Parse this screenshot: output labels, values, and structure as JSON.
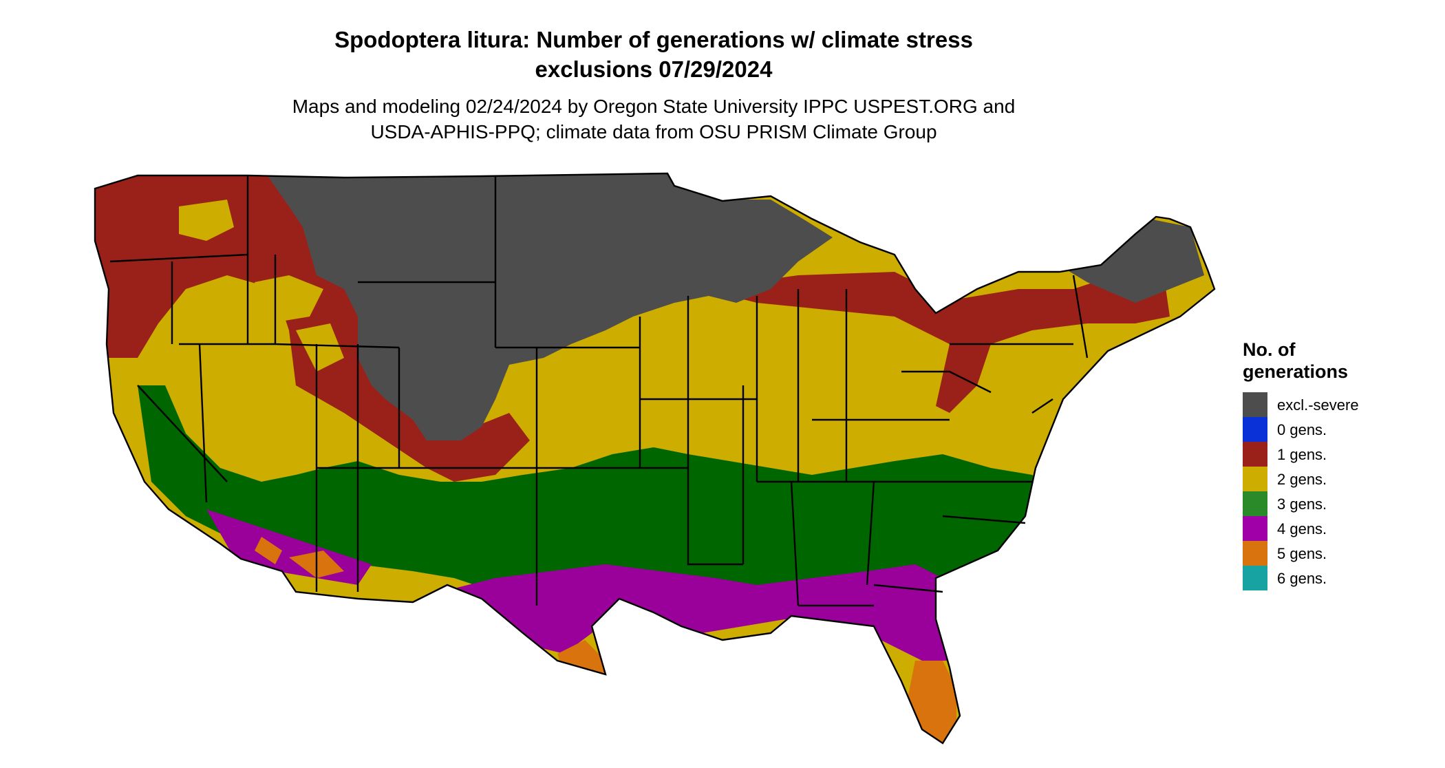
{
  "title": {
    "line1": "Spodoptera litura: Number of generations w/ climate stress",
    "line2": "exclusions 07/29/2024"
  },
  "subtitle": {
    "line1": "Maps and modeling 02/24/2024 by Oregon State University IPPC USPEST.ORG and",
    "line2": "USDA-APHIS-PPQ; climate data from OSU PRISM Climate Group"
  },
  "legend": {
    "title_line1": "No. of",
    "title_line2": "generations",
    "items": [
      {
        "label": "excl.-severe",
        "color": "#4d4d4d"
      },
      {
        "label": "0 gens.",
        "color": "#0a30d8"
      },
      {
        "label": "1 gens.",
        "color": "#9a2119"
      },
      {
        "label": "2 gens.",
        "color": "#ccad00"
      },
      {
        "label": "3 gens.",
        "color": "#2a8a2a"
      },
      {
        "label": "4 gens.",
        "color": "#a000a8"
      },
      {
        "label": "5 gens.",
        "color": "#d9730d"
      },
      {
        "label": "6 gens.",
        "color": "#18a3a3"
      }
    ]
  },
  "map_colors": {
    "excluded": "#4d4d4d",
    "zero": "#0a30d8",
    "one": "#9a2119",
    "two": "#ccad00",
    "three": "#006600",
    "four": "#9a009a",
    "five": "#d9730d",
    "six": "#18a3a3",
    "border": "#000000"
  }
}
